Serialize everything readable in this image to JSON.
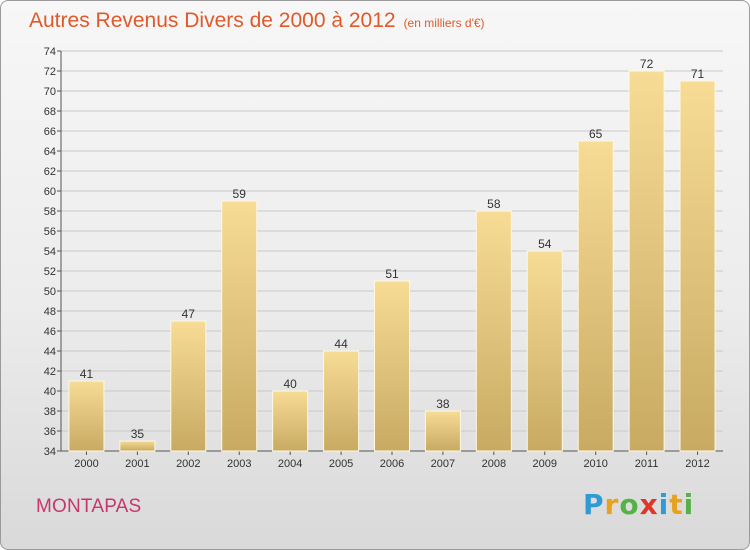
{
  "title": "Autres Revenus Divers de 2000 à 2012",
  "subtitle": "(en milliers d'€)",
  "location": "MONTAPAS",
  "logo": {
    "text": "Proxiti",
    "letters": [
      {
        "ch": "P",
        "color": "#2f9bd6"
      },
      {
        "ch": "r",
        "color": "#e8a21c"
      },
      {
        "ch": "o",
        "color": "#55b247"
      },
      {
        "ch": "x",
        "color": "#e0362a"
      },
      {
        "ch": "i",
        "color": "#2f9bd6"
      },
      {
        "ch": "t",
        "color": "#e8a21c"
      },
      {
        "ch": "i",
        "color": "#55b247"
      }
    ]
  },
  "colors": {
    "title": "#e0592a",
    "location": "#c8366e",
    "bar_light": "#f7dc96",
    "bar_dark": "#c8aa62",
    "grid": "#c9c9c9"
  },
  "chart_data": {
    "type": "bar",
    "title": "Autres Revenus Divers de 2000 à 2012",
    "subtitle": "(en milliers d'€)",
    "categories": [
      "2000",
      "2001",
      "2002",
      "2003",
      "2004",
      "2005",
      "2006",
      "2007",
      "2008",
      "2009",
      "2010",
      "2011",
      "2012"
    ],
    "values": [
      41,
      35,
      47,
      59,
      40,
      44,
      51,
      38,
      58,
      54,
      65,
      72,
      71
    ],
    "ylim": [
      34,
      74
    ],
    "ytick_step": 2,
    "grid": true,
    "data_labels": true
  }
}
